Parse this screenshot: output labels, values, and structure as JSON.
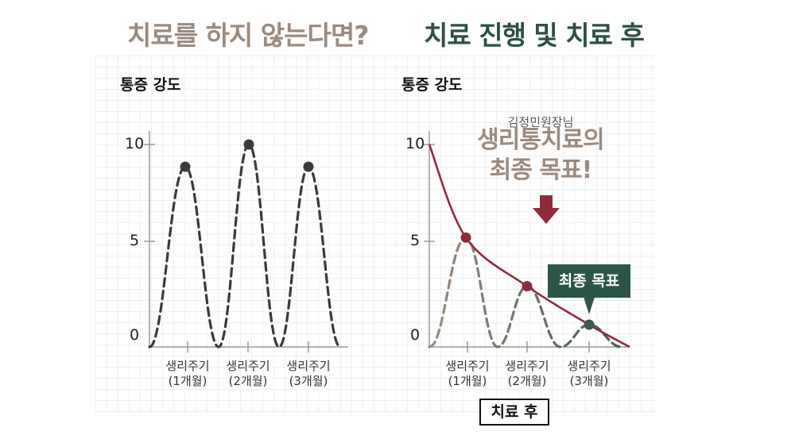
{
  "colors": {
    "title_left": "#9c8a7e",
    "title_right": "#2c4f45",
    "untreated_curve": "#3a3a3a",
    "treatment_curve": "#8e2b3b",
    "after_curve_start": "#9c8a7e",
    "after_curve_end": "#3e5a52",
    "badge": "#2c5548"
  },
  "chart_data": [
    {
      "type": "line",
      "title": "치료를 하지 않는다면?",
      "ylabel": "통증 강도",
      "ylim": [
        0,
        10
      ],
      "yticks": [
        "10",
        "5",
        "0"
      ],
      "categories": [
        "생리주기 (1개월)",
        "생리주기 (2개월)",
        "생리주기 (3개월)"
      ],
      "category_lines": [
        [
          "생리주기",
          "(1개월)"
        ],
        [
          "생리주기",
          "(2개월)"
        ],
        [
          "생리주기",
          "(3개월)"
        ]
      ],
      "series": [
        {
          "style": "dashed",
          "values": [
            8.9,
            10,
            8.9
          ]
        }
      ]
    },
    {
      "type": "line",
      "title": "치료 진행 및 치료 후",
      "ylabel": "통증 강도",
      "ylim": [
        0,
        10
      ],
      "yticks": [
        "10",
        "5",
        "0"
      ],
      "categories": [
        "생리주기 (1개월)",
        "생리주기 (2개월)",
        "생리주기 (3개월)"
      ],
      "category_lines": [
        [
          "생리주기",
          "(1개월)"
        ],
        [
          "생리주기",
          "(2개월)"
        ],
        [
          "생리주기",
          "(3개월)"
        ]
      ],
      "series": [
        {
          "style": "dashed",
          "values": [
            5.4,
            3.0,
            1.1
          ]
        },
        {
          "style": "solid",
          "trend": "decreasing",
          "points": [
            [
              0.0,
              10
            ],
            [
              0.6,
              5.4
            ],
            [
              1.5,
              3.0
            ],
            [
              2.5,
              1.1
            ],
            [
              3.3,
              0.0
            ]
          ]
        }
      ],
      "annotations": {
        "note_small": "김정민원장님",
        "note_big": [
          "생리통치료의",
          "최종 목표!"
        ],
        "final_goal": "최종 목표",
        "after_label": "치료 후"
      }
    }
  ]
}
